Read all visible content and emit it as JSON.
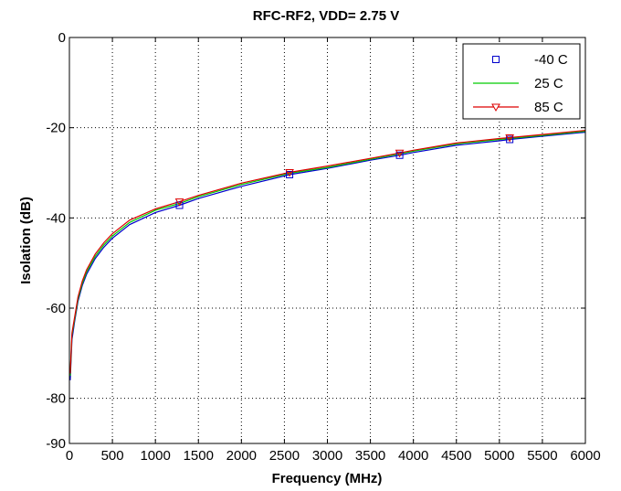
{
  "chart_data": {
    "type": "line",
    "title": "RFC-RF2, VDD= 2.75 V",
    "xlabel": "Frequency (MHz)",
    "ylabel": "Isolation (dB)",
    "xlim": [
      0,
      6000
    ],
    "ylim": [
      -90,
      0
    ],
    "xticks": [
      0,
      500,
      1000,
      1500,
      2000,
      2500,
      3000,
      3500,
      4000,
      4500,
      5000,
      5500,
      6000
    ],
    "xtick_labels": [
      "0",
      "500",
      "1000",
      "1500",
      "2000",
      "2500",
      "3000",
      "3500",
      "4000",
      "4500",
      "5000",
      "5500",
      "6000"
    ],
    "yticks": [
      -90,
      -80,
      -60,
      -40,
      -20,
      0
    ],
    "ytick_labels": [
      "-90",
      "-80",
      "-60",
      "-40",
      "-20",
      "0"
    ],
    "grid": true,
    "legend_position": "top-right",
    "x": [
      10,
      30,
      60,
      100,
      150,
      200,
      300,
      400,
      500,
      700,
      1000,
      1280,
      1500,
      2000,
      2560,
      3000,
      3500,
      3840,
      4000,
      4500,
      5000,
      5120,
      5500,
      6000
    ],
    "series": [
      {
        "name": "-40 C",
        "color": "#0000cc",
        "marker": "square",
        "line": false,
        "values": [
          -76,
          -67,
          -63,
          -58.5,
          -55,
          -52.5,
          -49,
          -46.5,
          -44.5,
          -41.5,
          -38.8,
          -37.2,
          -35.7,
          -33,
          -30.4,
          -29,
          -27.2,
          -26.1,
          -25.5,
          -23.9,
          -22.9,
          -22.6,
          -21.9,
          -21
        ],
        "marker_x": [
          1280,
          2560,
          3840,
          5120
        ],
        "marker_values": [
          -37.2,
          -30.4,
          -26.1,
          -22.6
        ]
      },
      {
        "name": "25 C",
        "color": "#00cc00",
        "marker": "none",
        "line": true,
        "values": [
          -75,
          -66,
          -62.5,
          -58,
          -54.5,
          -52,
          -48.5,
          -46,
          -44,
          -41,
          -38.3,
          -36.8,
          -35.3,
          -32.6,
          -30.1,
          -28.8,
          -27,
          -25.8,
          -25.2,
          -23.6,
          -22.6,
          -22.4,
          -21.7,
          -20.8
        ]
      },
      {
        "name": "85 C",
        "color": "#dd0000",
        "marker": "triangle-down",
        "line": true,
        "values": [
          -74.5,
          -65.5,
          -62,
          -57.5,
          -54,
          -51.5,
          -48,
          -45.5,
          -43.5,
          -40.5,
          -38,
          -36.4,
          -35,
          -32.3,
          -29.9,
          -28.5,
          -26.8,
          -25.6,
          -25,
          -23.4,
          -22.4,
          -22.2,
          -21.5,
          -20.6
        ],
        "marker_x": [
          1280,
          2560,
          3840,
          5120
        ],
        "marker_values": [
          -36.4,
          -29.9,
          -25.6,
          -22.2
        ]
      }
    ]
  }
}
